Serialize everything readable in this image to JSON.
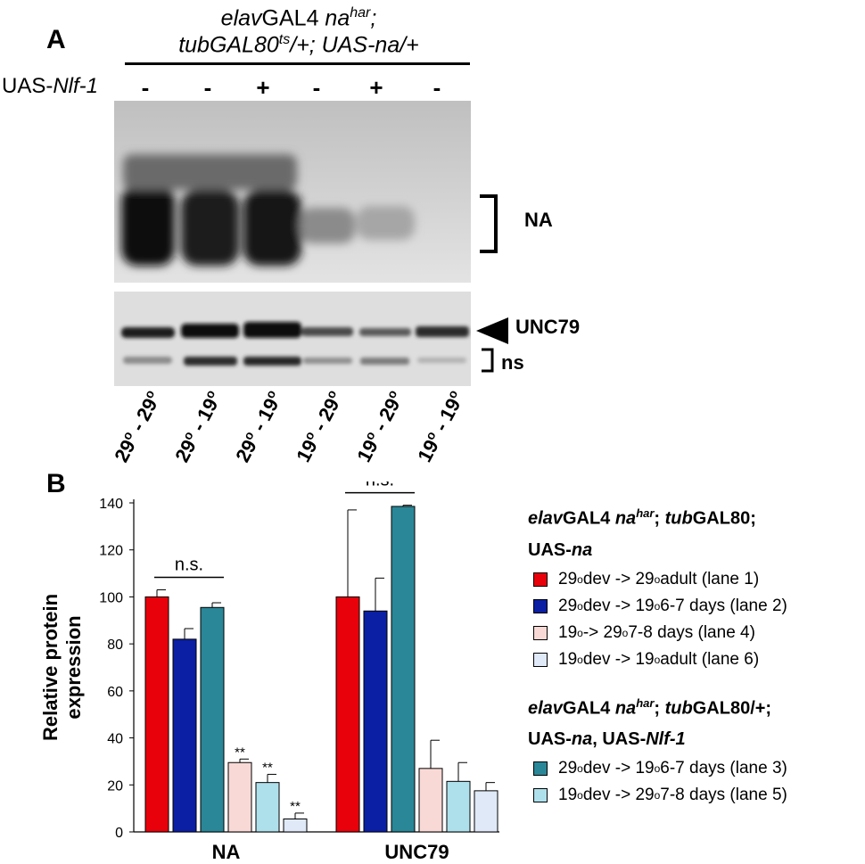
{
  "panel_a": {
    "label": "A",
    "header_line1": {
      "p1": "elav",
      "p2": "GAL4 ",
      "p3": "na",
      "p4": "har",
      "p5": ";"
    },
    "header_line2": {
      "p1": "tubGAL80",
      "p2": "ts",
      "p3": "/+; UAS-na/+"
    },
    "row_label": {
      "p1": "UAS-",
      "p2": "Nlf-1"
    },
    "signs": [
      "-",
      "-",
      "+",
      "-",
      "+",
      "-"
    ],
    "na_label": "NA",
    "unc79_label": "UNC79",
    "ns_label": "ns",
    "temperatures": [
      "29o - 29o",
      "29o - 19o",
      "29o - 19o",
      "19o - 29o",
      "19o - 29o",
      "19o - 19o"
    ],
    "temperature_parts": [
      {
        "a": "29",
        "s1": "o",
        "m": " - 29",
        "s2": "o"
      },
      {
        "a": "29",
        "s1": "o",
        "m": " - 19",
        "s2": "o"
      },
      {
        "a": "29",
        "s1": "o",
        "m": " - 19",
        "s2": "o"
      },
      {
        "a": "19",
        "s1": "o",
        "m": " - 29",
        "s2": "o"
      },
      {
        "a": "19",
        "s1": "o",
        "m": " - 29",
        "s2": "o"
      },
      {
        "a": "19",
        "s1": "o",
        "m": " - 19",
        "s2": "o"
      }
    ]
  },
  "panel_b": {
    "label": "B",
    "legend_group1": {
      "line1": {
        "p1": "elav",
        "p2": "GAL4 ",
        "p3": "na",
        "p4": "har",
        "p5": "; ",
        "p6": "tub",
        "p7": "GAL80;"
      },
      "line2": {
        "p1": "UAS-",
        "p2": "na"
      },
      "items": [
        {
          "a": "29",
          "s1": "o",
          "b": " dev -> 29",
          "s2": "o",
          "c": " adult (lane 1)"
        },
        {
          "a": "29",
          "s1": "o",
          "b": " dev -> 19",
          "s2": "o",
          "c": " 6-7 days (lane 2)"
        },
        {
          "a": "19",
          "s1": "o",
          "b": " -> 29",
          "s2": "o",
          "c": " 7-8 days (lane 4)"
        },
        {
          "a": "19",
          "s1": "o",
          "b": " dev -> 19",
          "s2": "o",
          "c": " adult (lane 6)"
        }
      ]
    },
    "legend_group2": {
      "line1": {
        "p1": "elav",
        "p2": "GAL4 ",
        "p3": "na",
        "p4": "har",
        "p5": "; ",
        "p6": "tub",
        "p7": "GAL80/+;"
      },
      "line2": {
        "p1": "UAS-",
        "p2": "na",
        "p3": ", UAS-",
        "p4": "Nlf-1"
      },
      "items": [
        {
          "a": "29",
          "s1": "o",
          "b": " dev -> 19",
          "s2": "o",
          "c": " 6-7 days (lane 3)"
        },
        {
          "a": "19",
          "s1": "o",
          "b": " dev -> 29",
          "s2": "o",
          "c": " 7-8 days (lane 5)"
        }
      ]
    }
  },
  "chart_data": {
    "type": "bar",
    "ylabel": "Relative protein expression",
    "ylabel_lines": [
      "Relative protein",
      "expression"
    ],
    "ylim": [
      0,
      140
    ],
    "yticks": [
      0,
      20,
      40,
      60,
      80,
      100,
      120,
      140
    ],
    "categories": [
      "NA",
      "UNC79"
    ],
    "series": [
      {
        "name": "29o dev -> 29o adult (lane 1)",
        "color": "#e8000b",
        "values": [
          100,
          100
        ],
        "errors": [
          3,
          37
        ],
        "annotations": [
          "",
          ""
        ]
      },
      {
        "name": "29o dev -> 19o 6-7 days (lane 2)",
        "color": "#0a1fa3",
        "values": [
          82,
          94
        ],
        "errors": [
          4.5,
          14
        ],
        "annotations": [
          "",
          ""
        ]
      },
      {
        "name": "29o dev -> 19o 6-7 days (lane 3)",
        "color": "#2a8797",
        "values": [
          95.5,
          138.5
        ],
        "errors": [
          2,
          0.5
        ],
        "annotations": [
          "",
          ""
        ]
      },
      {
        "name": "19o -> 29o 7-8 days (lane 4)",
        "color": "#f9d9d6",
        "values": [
          29.5,
          27
        ],
        "errors": [
          1.5,
          12
        ],
        "annotations": [
          "**",
          ""
        ]
      },
      {
        "name": "19o dev -> 29o 7-8 days (lane 5)",
        "color": "#aee0ec",
        "values": [
          21,
          21.5
        ],
        "errors": [
          3.5,
          8
        ],
        "annotations": [
          "**",
          ""
        ]
      },
      {
        "name": "19o dev -> 19o adult (lane 6)",
        "color": "#dfe9f7",
        "values": [
          5.5,
          17.5
        ],
        "errors": [
          2.5,
          3.5
        ],
        "annotations": [
          "**",
          ""
        ]
      }
    ],
    "significance": [
      {
        "label": "n.s.",
        "category": "NA"
      },
      {
        "label": "n.s.",
        "category": "UNC79"
      }
    ]
  }
}
